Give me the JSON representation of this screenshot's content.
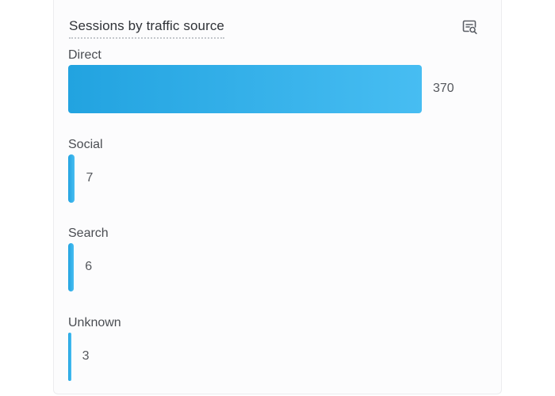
{
  "card": {
    "title": "Sessions by traffic source",
    "icon": "chart-insight-icon"
  },
  "colors": {
    "bar_start": "#22a3e0",
    "bar_end": "#47bdf2",
    "title": "#2f3237",
    "label": "#4a4d52"
  },
  "chart_data": {
    "type": "bar",
    "orientation": "horizontal",
    "title": "Sessions by traffic source",
    "categories": [
      "Direct",
      "Social",
      "Search",
      "Unknown"
    ],
    "values": [
      370,
      7,
      6,
      3
    ],
    "data_labels": [
      "370",
      "7",
      "6",
      "3"
    ],
    "xlim": [
      0,
      370
    ],
    "grid": false,
    "legend": "none"
  }
}
